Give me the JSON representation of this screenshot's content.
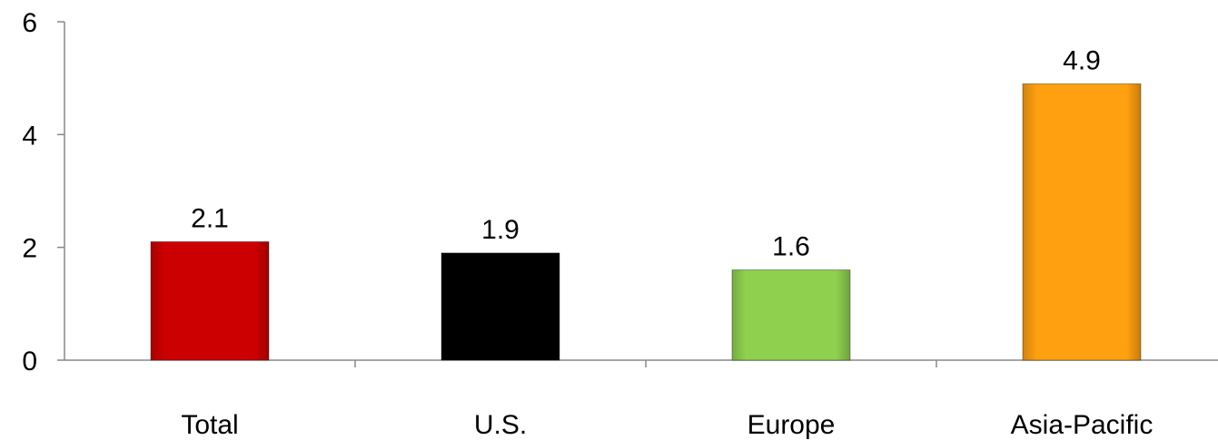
{
  "chart_data": {
    "type": "bar",
    "categories": [
      "Total",
      "U.S.",
      "Europe",
      "Asia-Pacific"
    ],
    "values": [
      2.1,
      1.9,
      1.6,
      4.9
    ],
    "data_labels": [
      "2.1",
      "1.9",
      "1.6",
      "4.9"
    ],
    "colors": [
      "#cc0000",
      "#000000",
      "#8fd14f",
      "#ffa010"
    ],
    "yticks": [
      "0",
      "2",
      "4",
      "6"
    ],
    "ylim": [
      0,
      6
    ],
    "grid": false,
    "legend": "none"
  }
}
